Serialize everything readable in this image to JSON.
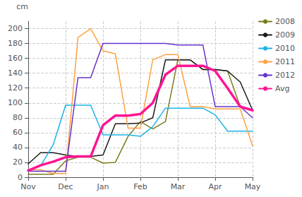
{
  "chart_data": {
    "type": "line",
    "ylabel": "cm",
    "x": [
      0,
      0.33,
      0.67,
      1.0,
      1.33,
      1.67,
      2.0,
      2.33,
      2.67,
      3.0,
      3.33,
      3.67,
      4.0,
      4.33,
      4.67,
      5.0,
      5.33,
      5.67,
      6.0
    ],
    "series": [
      {
        "name": "2008",
        "color": "#7b7b1e",
        "values": [
          4,
          4,
          4,
          22,
          27,
          27,
          19,
          20,
          55,
          75,
          65,
          75,
          158,
          158,
          145,
          145,
          143,
          95,
          90
        ]
      },
      {
        "name": "2009",
        "color": "#1a1a1a",
        "values": [
          18,
          33,
          33,
          30,
          28,
          28,
          30,
          72,
          72,
          73,
          80,
          158,
          158,
          158,
          145,
          145,
          143,
          128,
          90
        ]
      },
      {
        "name": "2010",
        "color": "#1ab4e8",
        "values": [
          9,
          15,
          44,
          97,
          97,
          97,
          57,
          57,
          57,
          55,
          68,
          93,
          93,
          93,
          93,
          84,
          62,
          62,
          62
        ]
      },
      {
        "name": "2011",
        "color": "#ffa040",
        "values": [
          10,
          10,
          5,
          5,
          188,
          200,
          170,
          166,
          66,
          66,
          158,
          165,
          165,
          95,
          95,
          92,
          92,
          92,
          42
        ]
      },
      {
        "name": "2012",
        "color": "#6633cc",
        "values": [
          8,
          8,
          8,
          8,
          134,
          134,
          180,
          180,
          180,
          180,
          180,
          180,
          178,
          178,
          178,
          95,
          95,
          95,
          80
        ]
      },
      {
        "name": "Avg",
        "color": "#ff1493",
        "values": [
          9,
          16,
          21,
          27,
          28,
          28,
          70,
          83,
          83,
          85,
          100,
          138,
          150,
          150,
          150,
          143,
          120,
          95,
          90
        ]
      }
    ],
    "xlim": [
      0,
      6
    ],
    "xticks": [
      {
        "value": 0,
        "label": "Nov"
      },
      {
        "value": 1,
        "label": "Dec"
      },
      {
        "value": 2,
        "label": "Jan"
      },
      {
        "value": 3,
        "label": "Feb"
      },
      {
        "value": 4,
        "label": "Mar"
      },
      {
        "value": 5,
        "label": "Apr"
      },
      {
        "value": 6,
        "label": "May"
      }
    ],
    "ylim": [
      0,
      210
    ],
    "yticks": [
      0,
      20,
      40,
      60,
      80,
      100,
      120,
      140,
      160,
      180,
      200
    ],
    "grid": true,
    "legend": "right"
  }
}
